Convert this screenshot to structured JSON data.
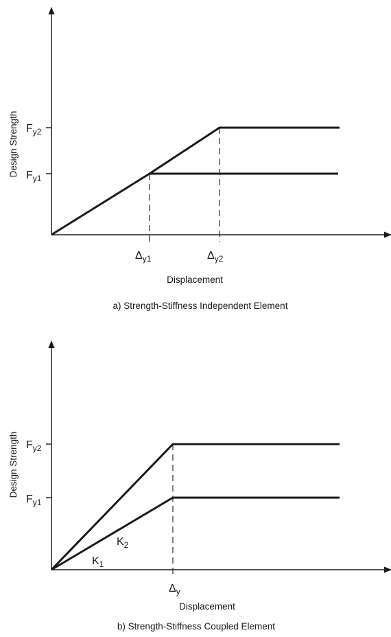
{
  "panel_a": {
    "ylabel": "Design Strength",
    "xlabel": "Displacement",
    "caption": "a) Strength-Stiffness Independent Element",
    "y_ticks": [
      {
        "base": "F",
        "sub": "y2"
      },
      {
        "base": "F",
        "sub": "y1"
      }
    ],
    "x_ticks": [
      {
        "base": "Δ",
        "sub": "y1"
      },
      {
        "base": "Δ",
        "sub": "y2"
      }
    ]
  },
  "panel_b": {
    "ylabel": "Design Strength",
    "xlabel": "Displacement",
    "caption": "b) Strength-Stiffness Coupled Element",
    "y_ticks": [
      {
        "base": "F",
        "sub": "y2"
      },
      {
        "base": "F",
        "sub": "y1"
      }
    ],
    "x_ticks": [
      {
        "base": "Δ",
        "sub": "y"
      }
    ],
    "stiffness_labels": [
      {
        "base": "K",
        "sub": "2"
      },
      {
        "base": "K",
        "sub": "1"
      }
    ]
  }
}
